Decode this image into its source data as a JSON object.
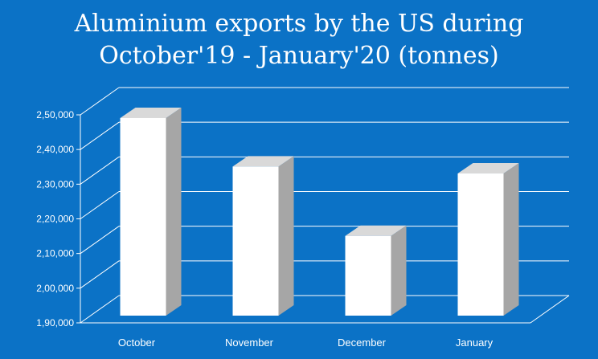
{
  "chart_data": {
    "type": "bar",
    "title_line1": "Aluminium exports by the US during",
    "title_line2": "October'19 - January'20 (tonnes)",
    "categories": [
      "October",
      "November",
      "December",
      "January"
    ],
    "values": [
      247000,
      233000,
      213000,
      231000
    ],
    "ylim": [
      190000,
      250000
    ],
    "yticks": [
      190000,
      200000,
      210000,
      220000,
      230000,
      240000,
      250000
    ],
    "ytick_labels": [
      "1,90,000",
      "2,00,000",
      "2,10,000",
      "2,20,000",
      "2,30,000",
      "2,40,000",
      "2,50,000"
    ],
    "grid": true,
    "legend": "none",
    "colors": {
      "background": "#0b72c6",
      "bar_front": "#ffffff",
      "bar_side": "#a6a6a6",
      "bar_top": "#d9d9d9",
      "grid": "#ffffff",
      "text": "#ffffff"
    }
  }
}
